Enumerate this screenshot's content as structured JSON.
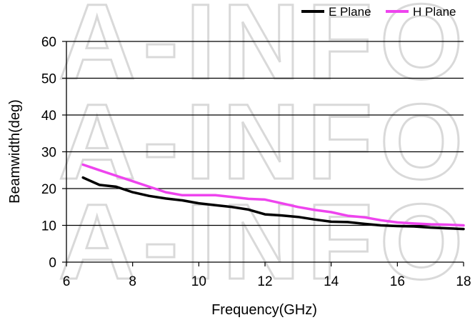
{
  "watermark": "A-INFO",
  "chart_data": {
    "type": "line",
    "xlabel": "Frequency(GHz)",
    "ylabel": "Beamwidth(deg)",
    "xlim": [
      6,
      18
    ],
    "ylim": [
      0,
      60
    ],
    "x_ticks": [
      "6",
      "8",
      "10",
      "12",
      "14",
      "16",
      "18"
    ],
    "y_ticks": [
      "0",
      "10",
      "20",
      "30",
      "40",
      "50",
      "60"
    ],
    "grid": "horizontal",
    "legend_position": "top-right",
    "series": [
      {
        "name": "E Plane",
        "color": "#000000",
        "x": [
          6.5,
          7,
          7.5,
          8,
          8.5,
          9,
          9.5,
          10,
          10.5,
          11,
          11.5,
          12,
          12.5,
          13,
          13.5,
          14,
          14.5,
          15,
          15.5,
          16,
          16.5,
          17,
          17.5,
          18
        ],
        "y": [
          23,
          21,
          20.5,
          19,
          18,
          17.3,
          16.8,
          16,
          15.5,
          15,
          14.3,
          13,
          12.7,
          12.3,
          11.6,
          11,
          10.9,
          10.4,
          10,
          9.8,
          9.7,
          9.4,
          9.2,
          9
        ]
      },
      {
        "name": "H Plane",
        "color": "#ee44ee",
        "x": [
          6.5,
          7,
          7.5,
          8,
          8.5,
          9,
          9.5,
          10,
          10.5,
          11,
          11.5,
          12,
          12.5,
          13,
          13.5,
          14,
          14.5,
          15,
          15.5,
          16,
          16.5,
          17,
          17.5,
          18
        ],
        "y": [
          26.5,
          25,
          23.5,
          22,
          20.5,
          19,
          18.2,
          18.2,
          18.2,
          17.7,
          17.2,
          17,
          16,
          15,
          14.2,
          13.6,
          12.6,
          12.2,
          11.4,
          10.8,
          10.5,
          10.3,
          10.2,
          10
        ]
      }
    ]
  }
}
